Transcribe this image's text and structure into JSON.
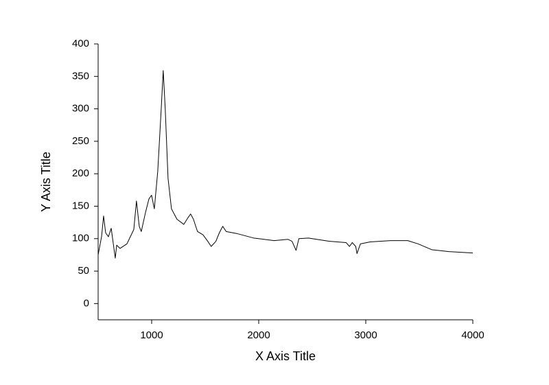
{
  "chart_data": {
    "type": "line",
    "x_label": "X Axis Title",
    "y_label": "Y Axis Title",
    "xlim": [
      500,
      4000
    ],
    "xticks": [
      1000,
      2000,
      3000,
      4000
    ],
    "ylim": [
      -25,
      400
    ],
    "yticks": [
      0,
      50,
      100,
      150,
      200,
      250,
      300,
      350,
      400
    ],
    "grid": false,
    "series": [
      {
        "color": "#000000",
        "x": [
          500,
          532,
          551,
          570,
          596,
          622,
          641,
          660,
          673,
          705,
          769,
          833,
          858,
          884,
          903,
          942,
          974,
          999,
          1025,
          1057,
          1089,
          1108,
          1127,
          1153,
          1185,
          1236,
          1300,
          1338,
          1364,
          1390,
          1428,
          1479,
          1524,
          1556,
          1600,
          1632,
          1664,
          1696,
          1793,
          1952,
          2144,
          2272,
          2311,
          2349,
          2375,
          2464,
          2656,
          2816,
          2848,
          2874,
          2906,
          2918,
          2950,
          3040,
          3232,
          3392,
          3488,
          3616,
          3776,
          4000
        ],
        "values": [
          75,
          103,
          135,
          109,
          103,
          116,
          93,
          70,
          90,
          85,
          92,
          114,
          158,
          119,
          111,
          140,
          161,
          167,
          146,
          204,
          299,
          359,
          299,
          193,
          146,
          130,
          122,
          132,
          138,
          130,
          111,
          106,
          96,
          88,
          96,
          109,
          119,
          111,
          108,
          101,
          97,
          99,
          96,
          82,
          100,
          101,
          96,
          94,
          88,
          94,
          88,
          77,
          92,
          95,
          97,
          97,
          92,
          83,
          80,
          78
        ]
      }
    ]
  }
}
